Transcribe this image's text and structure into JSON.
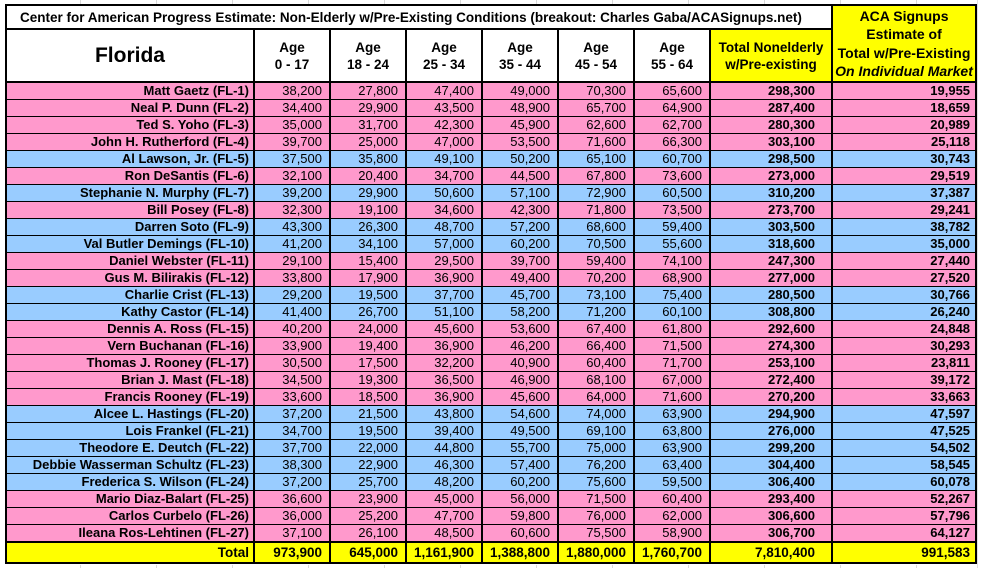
{
  "page": {
    "background": "#FFFFFF"
  },
  "colors": {
    "pink_row": "#FF99CC",
    "blue_row": "#99CCFF",
    "highlight_yellow": "#FFFF00",
    "border_black": "#000000",
    "text": "#000000"
  },
  "chart_data": {
    "type": "table",
    "title": "Center for American Progress Estimate: Non-Elderly w/Pre-Existing Conditions (breakout: Charles Gaba/ACASignups.net)",
    "corner_header": "Florida",
    "age_column_word": "Age",
    "age_column_ranges": [
      "0 - 17",
      "18 - 24",
      "25 - 34",
      "35 - 44",
      "45 - 54",
      "55 - 64"
    ],
    "total_column_header_lines": [
      "Total Nonelderly",
      "w/Pre-existing"
    ],
    "aca_column_header_lines": [
      "ACA Signups",
      "Estimate of",
      "Total w/Pre-Existing",
      "On Individual Market"
    ],
    "rows": [
      {
        "name": "Matt Gaetz (FL-1)",
        "row_color": "pink",
        "ages": [
          "38,200",
          "27,800",
          "47,400",
          "49,000",
          "70,300",
          "65,600"
        ],
        "total": "298,300",
        "aca": "19,955"
      },
      {
        "name": "Neal P. Dunn (FL-2)",
        "row_color": "pink",
        "ages": [
          "34,400",
          "29,900",
          "43,500",
          "48,900",
          "65,700",
          "64,900"
        ],
        "total": "287,400",
        "aca": "18,659"
      },
      {
        "name": "Ted S. Yoho (FL-3)",
        "row_color": "pink",
        "ages": [
          "35,000",
          "31,700",
          "42,300",
          "45,900",
          "62,600",
          "62,700"
        ],
        "total": "280,300",
        "aca": "20,989"
      },
      {
        "name": "John H. Rutherford (FL-4)",
        "row_color": "pink",
        "ages": [
          "39,700",
          "25,000",
          "47,000",
          "53,500",
          "71,600",
          "66,300"
        ],
        "total": "303,100",
        "aca": "25,118"
      },
      {
        "name": "Al Lawson, Jr. (FL-5)",
        "row_color": "blue",
        "ages": [
          "37,500",
          "35,800",
          "49,100",
          "50,200",
          "65,100",
          "60,700"
        ],
        "total": "298,500",
        "aca": "30,743"
      },
      {
        "name": "Ron DeSantis (FL-6)",
        "row_color": "pink",
        "ages": [
          "32,100",
          "20,400",
          "34,700",
          "44,500",
          "67,800",
          "73,600"
        ],
        "total": "273,000",
        "aca": "29,519"
      },
      {
        "name": "Stephanie N. Murphy (FL-7)",
        "row_color": "blue",
        "ages": [
          "39,200",
          "29,900",
          "50,600",
          "57,100",
          "72,900",
          "60,500"
        ],
        "total": "310,200",
        "aca": "37,387"
      },
      {
        "name": "Bill Posey (FL-8)",
        "row_color": "pink",
        "ages": [
          "32,300",
          "19,100",
          "34,600",
          "42,300",
          "71,800",
          "73,500"
        ],
        "total": "273,700",
        "aca": "29,241"
      },
      {
        "name": "Darren Soto (FL-9)",
        "row_color": "blue",
        "ages": [
          "43,300",
          "26,300",
          "48,700",
          "57,200",
          "68,600",
          "59,400"
        ],
        "total": "303,500",
        "aca": "38,782"
      },
      {
        "name": "Val Butler Demings (FL-10)",
        "row_color": "blue",
        "ages": [
          "41,200",
          "34,100",
          "57,000",
          "60,200",
          "70,500",
          "55,600"
        ],
        "total": "318,600",
        "aca": "35,000"
      },
      {
        "name": "Daniel Webster (FL-11)",
        "row_color": "pink",
        "ages": [
          "29,100",
          "15,400",
          "29,500",
          "39,700",
          "59,400",
          "74,100"
        ],
        "total": "247,300",
        "aca": "27,440"
      },
      {
        "name": "Gus M. Bilirakis (FL-12)",
        "row_color": "pink",
        "ages": [
          "33,800",
          "17,900",
          "36,900",
          "49,400",
          "70,200",
          "68,900"
        ],
        "total": "277,000",
        "aca": "27,520"
      },
      {
        "name": "Charlie Crist (FL-13)",
        "row_color": "blue",
        "ages": [
          "29,200",
          "19,500",
          "37,700",
          "45,700",
          "73,100",
          "75,400"
        ],
        "total": "280,500",
        "aca": "30,766"
      },
      {
        "name": "Kathy Castor (FL-14)",
        "row_color": "blue",
        "ages": [
          "41,400",
          "26,700",
          "51,100",
          "58,200",
          "71,200",
          "60,100"
        ],
        "total": "308,800",
        "aca": "26,240"
      },
      {
        "name": "Dennis A. Ross (FL-15)",
        "row_color": "pink",
        "ages": [
          "40,200",
          "24,000",
          "45,600",
          "53,600",
          "67,400",
          "61,800"
        ],
        "total": "292,600",
        "aca": "24,848"
      },
      {
        "name": "Vern Buchanan (FL-16)",
        "row_color": "pink",
        "ages": [
          "33,900",
          "19,400",
          "36,900",
          "46,200",
          "66,400",
          "71,500"
        ],
        "total": "274,300",
        "aca": "30,293"
      },
      {
        "name": "Thomas J. Rooney (FL-17)",
        "row_color": "pink",
        "ages": [
          "30,500",
          "17,500",
          "32,200",
          "40,900",
          "60,400",
          "71,700"
        ],
        "total": "253,100",
        "aca": "23,811"
      },
      {
        "name": "Brian J. Mast (FL-18)",
        "row_color": "pink",
        "ages": [
          "34,500",
          "19,300",
          "36,500",
          "46,900",
          "68,100",
          "67,000"
        ],
        "total": "272,400",
        "aca": "39,172"
      },
      {
        "name": "Francis Rooney (FL-19)",
        "row_color": "pink",
        "ages": [
          "33,600",
          "18,500",
          "36,900",
          "45,600",
          "64,000",
          "71,600"
        ],
        "total": "270,200",
        "aca": "33,663"
      },
      {
        "name": "Alcee L. Hastings (FL-20)",
        "row_color": "blue",
        "ages": [
          "37,200",
          "21,500",
          "43,800",
          "54,600",
          "74,000",
          "63,900"
        ],
        "total": "294,900",
        "aca": "47,597"
      },
      {
        "name": "Lois Frankel (FL-21)",
        "row_color": "blue",
        "ages": [
          "34,700",
          "19,500",
          "39,400",
          "49,500",
          "69,100",
          "63,800"
        ],
        "total": "276,000",
        "aca": "47,525"
      },
      {
        "name": "Theodore E. Deutch (FL-22)",
        "row_color": "blue",
        "ages": [
          "37,700",
          "22,000",
          "44,800",
          "55,700",
          "75,000",
          "63,900"
        ],
        "total": "299,200",
        "aca": "54,502"
      },
      {
        "name": "Debbie Wasserman Schultz (FL-23)",
        "row_color": "blue",
        "ages": [
          "38,300",
          "22,900",
          "46,300",
          "57,400",
          "76,200",
          "63,400"
        ],
        "total": "304,400",
        "aca": "58,545"
      },
      {
        "name": "Frederica S. Wilson (FL-24)",
        "row_color": "blue",
        "ages": [
          "37,200",
          "25,700",
          "48,200",
          "60,200",
          "75,600",
          "59,500"
        ],
        "total": "306,400",
        "aca": "60,078"
      },
      {
        "name": "Mario Diaz-Balart (FL-25)",
        "row_color": "pink",
        "ages": [
          "36,600",
          "23,900",
          "45,000",
          "56,000",
          "71,500",
          "60,400"
        ],
        "total": "293,400",
        "aca": "52,267"
      },
      {
        "name": "Carlos Curbelo (FL-26)",
        "row_color": "pink",
        "ages": [
          "36,000",
          "25,200",
          "47,700",
          "59,800",
          "76,000",
          "62,000"
        ],
        "total": "306,600",
        "aca": "57,796"
      },
      {
        "name": "Ileana Ros-Lehtinen (FL-27)",
        "row_color": "pink",
        "ages": [
          "37,100",
          "26,100",
          "48,500",
          "60,600",
          "75,500",
          "58,900"
        ],
        "total": "306,700",
        "aca": "64,127"
      }
    ],
    "total_row": {
      "label": "Total",
      "ages": [
        "973,900",
        "645,000",
        "1,161,900",
        "1,388,800",
        "1,880,000",
        "1,760,700"
      ],
      "total": "7,810,400",
      "aca": "991,583"
    }
  }
}
